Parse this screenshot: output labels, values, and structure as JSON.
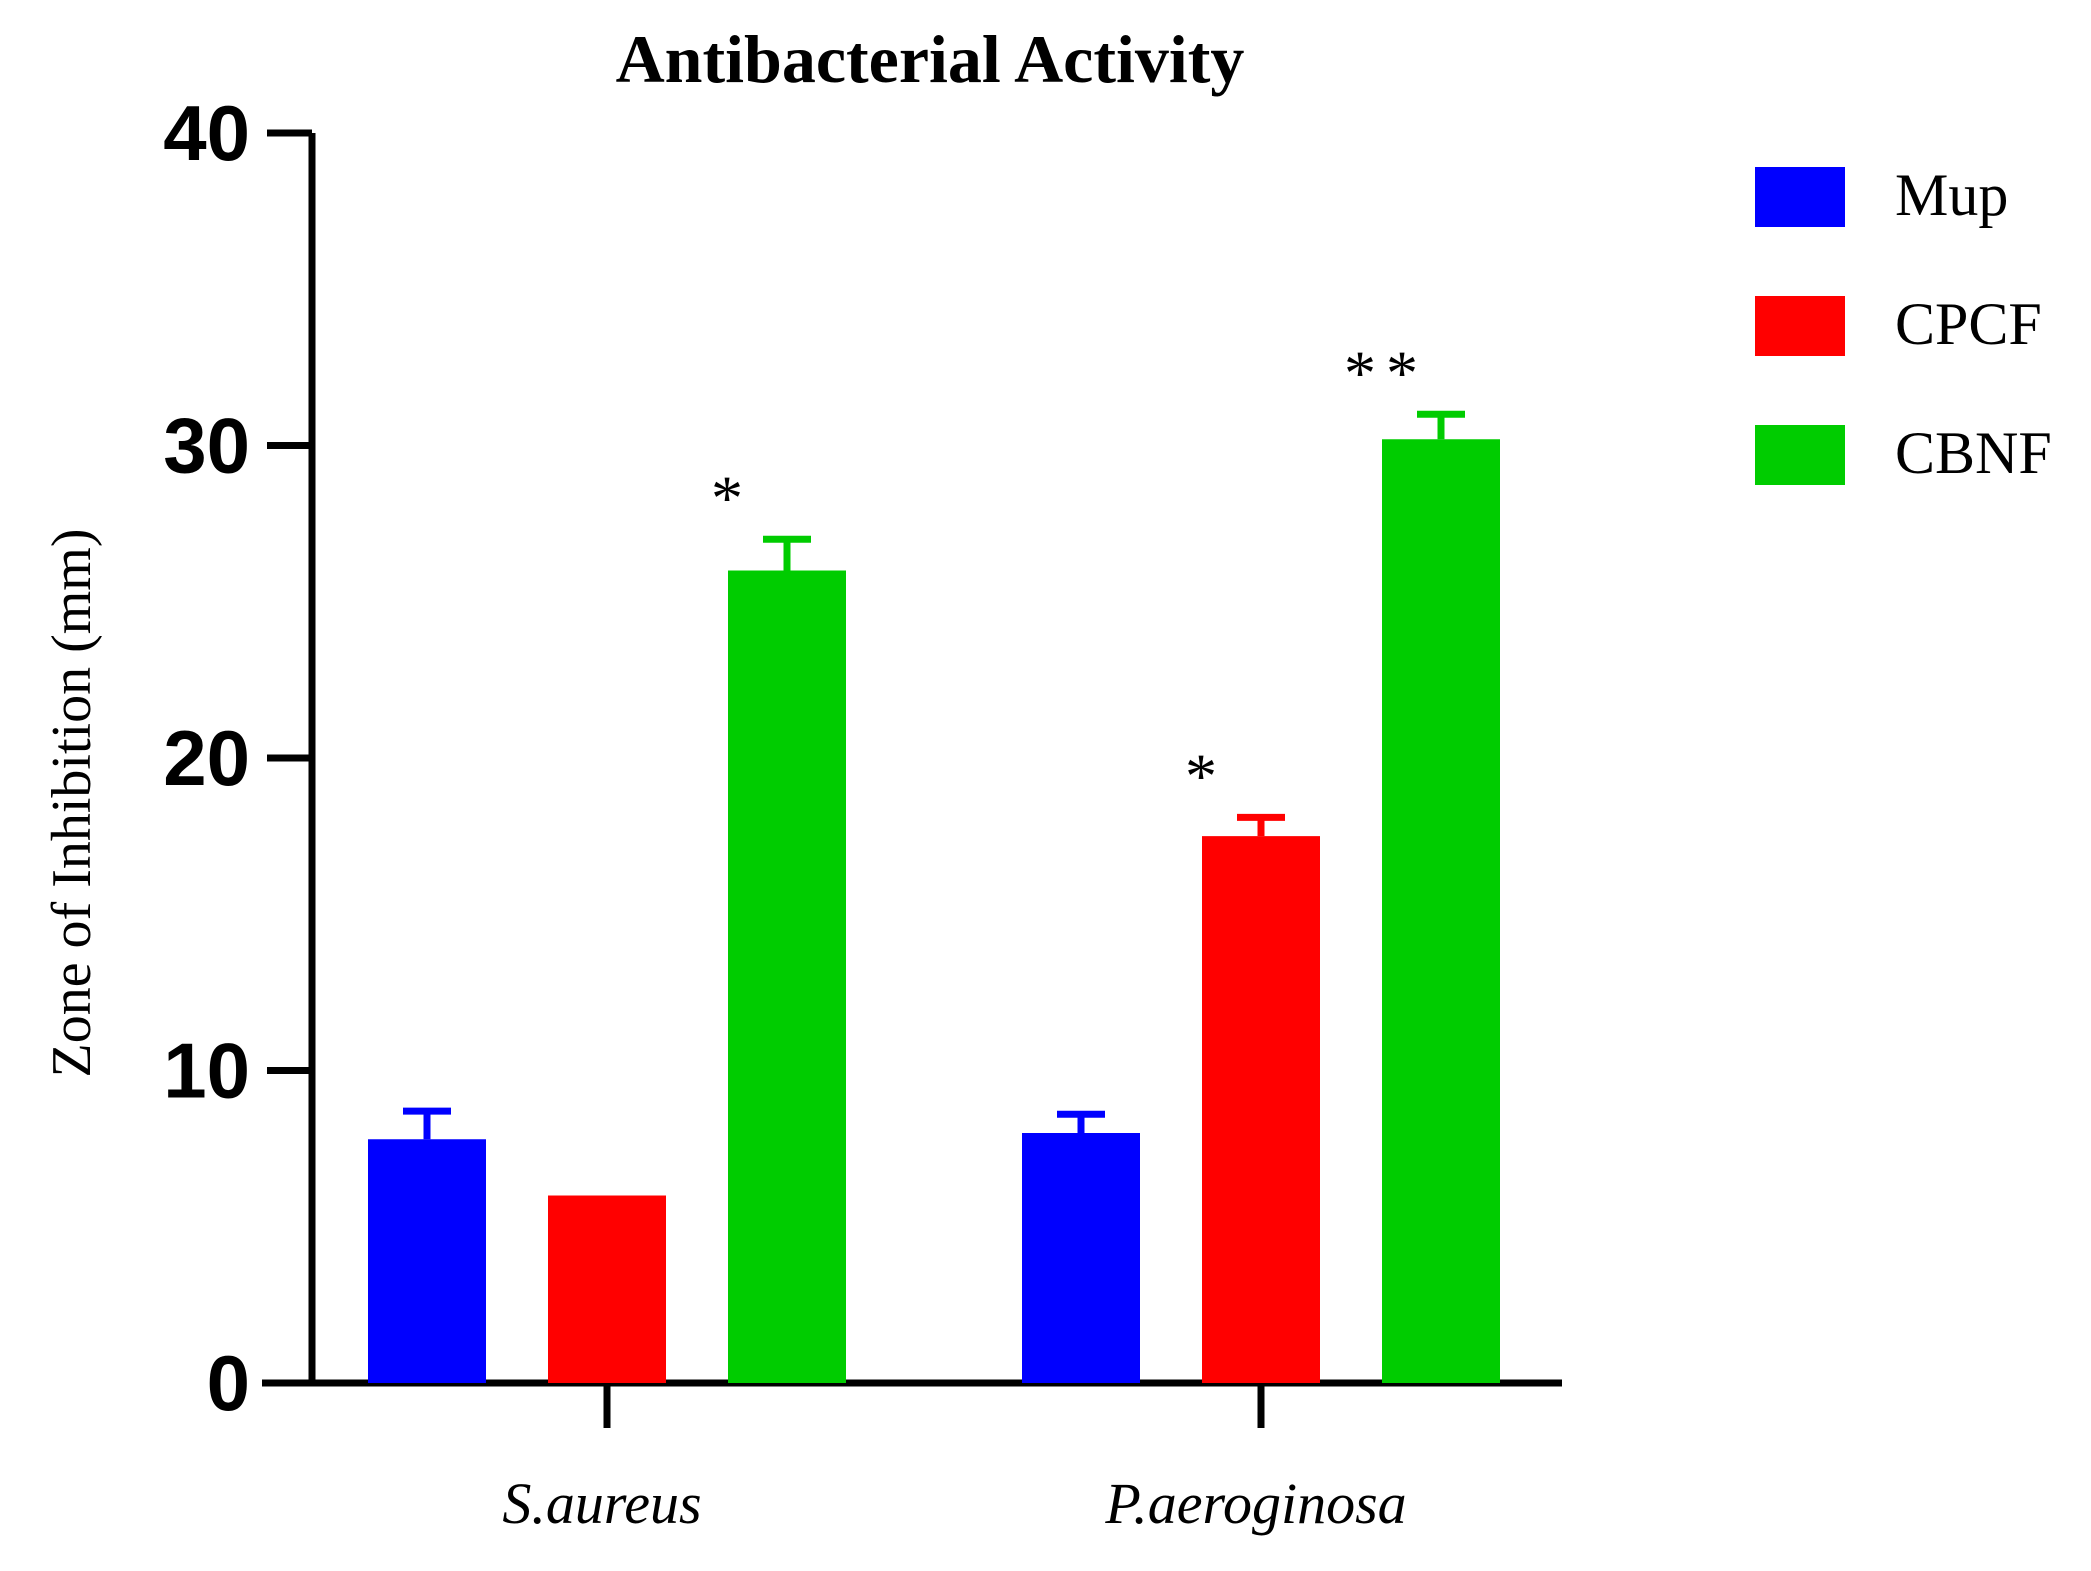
{
  "chart_data": {
    "type": "bar",
    "title": "Antibacterial Activity",
    "xlabel": "",
    "ylabel": "Zone of Inhibition (mm)",
    "ylim": [
      0,
      40
    ],
    "yticks": [
      "0",
      "10",
      "20",
      "30",
      "40"
    ],
    "categories": [
      "S.aureus",
      "P.aeroginosa"
    ],
    "series": [
      {
        "name": "Mup",
        "color": "#0000ff",
        "values": [
          7.8,
          8.0
        ],
        "errors": [
          0.9,
          0.6
        ],
        "annotations": [
          "",
          ""
        ]
      },
      {
        "name": "CPCF",
        "color": "#ff0000",
        "values": [
          6.0,
          17.5
        ],
        "errors": [
          0,
          0.6
        ],
        "annotations": [
          "",
          "*"
        ]
      },
      {
        "name": "CBNF",
        "color": "#00cc00",
        "values": [
          26.0,
          30.2
        ],
        "errors": [
          1.0,
          0.8
        ],
        "annotations": [
          "*",
          "**"
        ]
      }
    ],
    "legend_position": "top-right",
    "grid": false
  }
}
